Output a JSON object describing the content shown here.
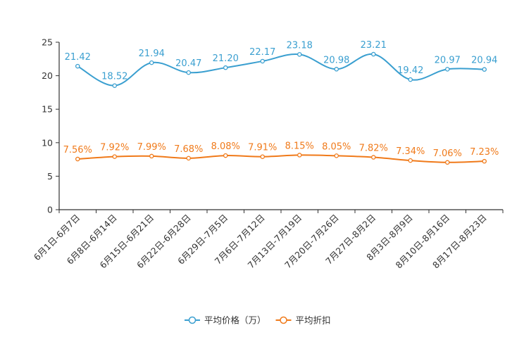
{
  "chart_data": {
    "type": "line",
    "title": "",
    "xlabel": "",
    "ylabel": "",
    "ylim": [
      0,
      25
    ],
    "yticks": [
      0,
      5,
      10,
      15,
      20,
      25
    ],
    "grid": false,
    "legend_position": "bottom-center",
    "categories": [
      "6月1日-6月7日",
      "6月8日-6月14日",
      "6月15日-6月21日",
      "6月22日-6月28日",
      "6月29日-7月5日",
      "7月6日-7月12日",
      "7月13日-7月19日",
      "7月20日-7月26日",
      "7月27日-8月2日",
      "8月3日-8月9日",
      "8月10日-8月16日",
      "8月17日-8月23日"
    ],
    "series": [
      {
        "name": "平均价格（万）",
        "color": "#3a9fd0",
        "values": [
          21.42,
          18.52,
          21.94,
          20.47,
          21.2,
          22.17,
          23.18,
          20.98,
          23.21,
          19.42,
          20.97,
          20.94
        ],
        "labels": [
          "21.42",
          "18.52",
          "21.94",
          "20.47",
          "21.20",
          "22.17",
          "23.18",
          "20.98",
          "23.21",
          "19.42",
          "20.97",
          "20.94"
        ]
      },
      {
        "name": "平均折扣",
        "color": "#f07a1a",
        "values": [
          7.56,
          7.92,
          7.99,
          7.68,
          8.08,
          7.91,
          8.15,
          8.05,
          7.82,
          7.34,
          7.06,
          7.23
        ],
        "labels": [
          "7.56%",
          "7.92%",
          "7.99%",
          "7.68%",
          "8.08%",
          "7.91%",
          "8.15%",
          "8.05%",
          "7.82%",
          "7.34%",
          "7.06%",
          "7.23%"
        ]
      }
    ]
  }
}
